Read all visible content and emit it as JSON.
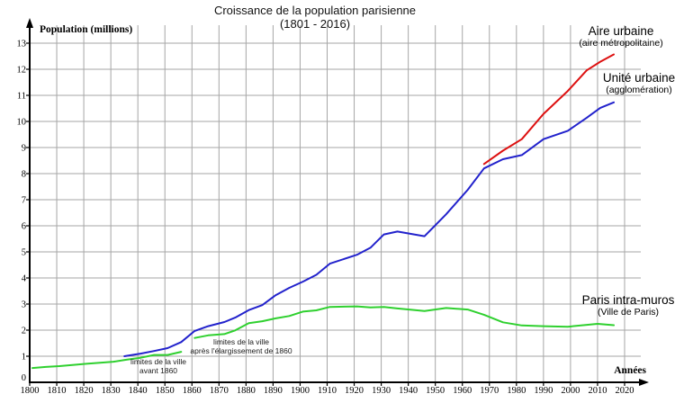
{
  "title": {
    "line1": "Croissance de la population parisienne",
    "line2": "(1801 - 2016)"
  },
  "axes": {
    "y_label": "Population (millions)",
    "x_label": "Années",
    "y_ticks": [
      0,
      1,
      2,
      3,
      4,
      5,
      6,
      7,
      8,
      9,
      10,
      11,
      12,
      13
    ],
    "x_ticks": [
      1800,
      1810,
      1820,
      1830,
      1840,
      1850,
      1860,
      1870,
      1880,
      1890,
      1900,
      1910,
      1920,
      1930,
      1940,
      1950,
      1960,
      1970,
      1980,
      1990,
      2000,
      2010,
      2020
    ]
  },
  "legend": [
    {
      "name": "Aire urbaine",
      "subtitle": "(aire métropolitaine)",
      "color": "#dd1111"
    },
    {
      "name": "Unité urbaine",
      "subtitle": "(agglomération)",
      "color": "#2222cc"
    },
    {
      "name": "Paris intra-muros",
      "subtitle": "(Ville de Paris)",
      "color": "#2fd02f"
    }
  ],
  "annotations": [
    {
      "line1": "limites de la ville",
      "line2": "avant 1860"
    },
    {
      "line1": "limites de la ville",
      "line2": "après l'élargissement de 1860"
    }
  ],
  "colors": {
    "grid": "#a6a6a6",
    "axis": "#000000",
    "aire_urbaine": "#dd1111",
    "unite_urbaine": "#2222cc",
    "paris_intra_muros": "#2fd02f"
  },
  "chart_data": {
    "type": "line",
    "title": "Croissance de la population parisienne (1801 - 2016)",
    "xlabel": "Années",
    "ylabel": "Population (millions)",
    "xlim": [
      1800,
      2020
    ],
    "ylim": [
      0,
      13
    ],
    "grid": true,
    "legend_position": "right-of-line-ends",
    "series": [
      {
        "name": "Aire urbaine (aire métropolitaine)",
        "color": "#dd1111",
        "points": [
          [
            1968,
            8.37
          ],
          [
            1975,
            8.88
          ],
          [
            1982,
            9.32
          ],
          [
            1990,
            10.29
          ],
          [
            1999,
            11.17
          ],
          [
            2006,
            11.96
          ],
          [
            2011,
            12.29
          ],
          [
            2016,
            12.57
          ]
        ]
      },
      {
        "name": "Unité urbaine (agglomération)",
        "color": "#2222cc",
        "points": [
          [
            1835,
            1.0
          ],
          [
            1841,
            1.1
          ],
          [
            1846,
            1.2
          ],
          [
            1851,
            1.31
          ],
          [
            1856,
            1.54
          ],
          [
            1861,
            1.97
          ],
          [
            1866,
            2.15
          ],
          [
            1872,
            2.31
          ],
          [
            1876,
            2.48
          ],
          [
            1881,
            2.77
          ],
          [
            1886,
            2.96
          ],
          [
            1891,
            3.34
          ],
          [
            1896,
            3.62
          ],
          [
            1901,
            3.86
          ],
          [
            1906,
            4.12
          ],
          [
            1911,
            4.55
          ],
          [
            1921,
            4.89
          ],
          [
            1926,
            5.16
          ],
          [
            1931,
            5.67
          ],
          [
            1936,
            5.78
          ],
          [
            1946,
            5.6
          ],
          [
            1954,
            6.44
          ],
          [
            1962,
            7.38
          ],
          [
            1968,
            8.2
          ],
          [
            1975,
            8.55
          ],
          [
            1982,
            8.71
          ],
          [
            1990,
            9.32
          ],
          [
            1999,
            9.64
          ],
          [
            2006,
            10.14
          ],
          [
            2011,
            10.52
          ],
          [
            2016,
            10.73
          ]
        ]
      },
      {
        "name": "Paris intra-muros (Ville de Paris) — limites de la ville avant 1860",
        "color": "#2fd02f",
        "points": [
          [
            1801,
            0.55
          ],
          [
            1806,
            0.59
          ],
          [
            1811,
            0.62
          ],
          [
            1821,
            0.71
          ],
          [
            1831,
            0.79
          ],
          [
            1836,
            0.87
          ],
          [
            1841,
            0.94
          ],
          [
            1846,
            1.05
          ],
          [
            1851,
            1.05
          ],
          [
            1856,
            1.17
          ]
        ]
      },
      {
        "name": "Paris intra-muros (Ville de Paris) — après l'élargissement de 1860",
        "color": "#2fd02f",
        "points": [
          [
            1861,
            1.7
          ],
          [
            1866,
            1.8
          ],
          [
            1872,
            1.85
          ],
          [
            1876,
            1.99
          ],
          [
            1881,
            2.27
          ],
          [
            1886,
            2.34
          ],
          [
            1891,
            2.45
          ],
          [
            1896,
            2.54
          ],
          [
            1901,
            2.71
          ],
          [
            1906,
            2.76
          ],
          [
            1911,
            2.89
          ],
          [
            1921,
            2.91
          ],
          [
            1926,
            2.87
          ],
          [
            1931,
            2.89
          ],
          [
            1936,
            2.83
          ],
          [
            1946,
            2.73
          ],
          [
            1954,
            2.85
          ],
          [
            1962,
            2.79
          ],
          [
            1968,
            2.59
          ],
          [
            1975,
            2.3
          ],
          [
            1982,
            2.18
          ],
          [
            1990,
            2.15
          ],
          [
            1999,
            2.13
          ],
          [
            2010,
            2.24
          ],
          [
            2016,
            2.19
          ]
        ]
      }
    ]
  }
}
